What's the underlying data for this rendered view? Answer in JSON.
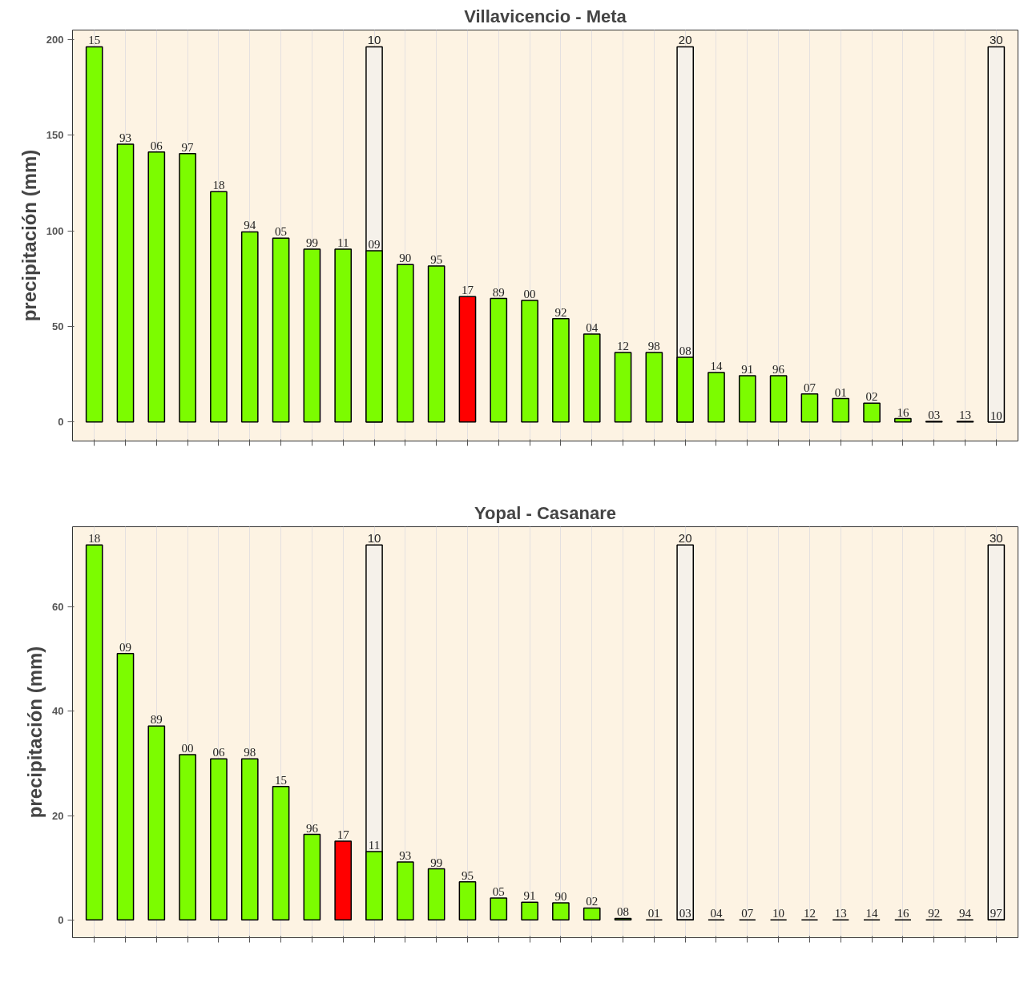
{
  "chart_data": [
    {
      "type": "bar",
      "title": "Villavicencio - Meta",
      "ylabel": "precipitación (mm)",
      "categories": [
        "15",
        "93",
        "06",
        "97",
        "18",
        "94",
        "05",
        "99",
        "11",
        "09",
        "90",
        "95",
        "17",
        "89",
        "00",
        "92",
        "04",
        "12",
        "98",
        "08",
        "14",
        "91",
        "96",
        "07",
        "01",
        "02",
        "16",
        "03",
        "13",
        "10"
      ],
      "ylim": [
        -10,
        205
      ],
      "yticks": [
        0,
        50,
        100,
        150,
        200
      ],
      "grid": "x",
      "tick_labels": "y",
      "annotations": [
        {
          "text": "10",
          "x": "09",
          "y": 196.2
        },
        {
          "text": "20",
          "x": "08",
          "y": 196.2
        },
        {
          "text": "30",
          "x": "10",
          "y": 196.2
        }
      ],
      "series": [
        {
          "color": "#f5f1ea",
          "values": [
            null,
            null,
            null,
            null,
            null,
            null,
            null,
            null,
            null,
            196.2,
            null,
            null,
            null,
            null,
            null,
            null,
            null,
            null,
            null,
            196.2,
            null,
            null,
            null,
            null,
            null,
            null,
            null,
            null,
            null,
            196.2
          ]
        },
        {
          "colors": [
            "#7cfc00",
            "#7cfc00",
            "#7cfc00",
            "#7cfc00",
            "#7cfc00",
            "#7cfc00",
            "#7cfc00",
            "#7cfc00",
            "#7cfc00",
            "#7cfc00",
            "#7cfc00",
            "#7cfc00",
            "#ff0000",
            "#7cfc00",
            "#7cfc00",
            "#7cfc00",
            "#7cfc00",
            "#7cfc00",
            "#7cfc00",
            "#7cfc00",
            "#7cfc00",
            "#7cfc00",
            "#7cfc00",
            "#7cfc00",
            "#7cfc00",
            "#7cfc00",
            "#7cfc00",
            "#7cfc00",
            "#7cfc00",
            "#000000"
          ],
          "values": [
            196.2,
            145.3,
            141.2,
            140.4,
            120.4,
            99.4,
            96.1,
            90.4,
            90.4,
            89.5,
            82.3,
            81.6,
            65.5,
            64.6,
            63.6,
            54.0,
            46.0,
            36.3,
            36.3,
            33.8,
            25.8,
            24.2,
            24.2,
            14.6,
            12.2,
            9.8,
            1.7,
            0.3,
            0.3,
            0
          ]
        }
      ]
    },
    {
      "type": "bar",
      "title": "Yopal - Casanare",
      "ylabel": "precipitación (mm)",
      "categories": [
        "18",
        "09",
        "89",
        "00",
        "06",
        "98",
        "15",
        "96",
        "17",
        "11",
        "93",
        "99",
        "95",
        "05",
        "91",
        "90",
        "02",
        "08",
        "01",
        "03",
        "04",
        "07",
        "10",
        "12",
        "13",
        "14",
        "16",
        "92",
        "94",
        "97"
      ],
      "ylim": [
        -3.4,
        75.4
      ],
      "yticks": [
        0,
        20,
        40,
        60
      ],
      "grid": "x",
      "tick_labels": "y",
      "annotations": [
        {
          "text": "10",
          "x": "11",
          "y": 71.9
        },
        {
          "text": "20",
          "x": "03",
          "y": 71.9
        },
        {
          "text": "30",
          "x": "97",
          "y": 71.9
        }
      ],
      "series": [
        {
          "color": "#f5f1ea",
          "values": [
            null,
            null,
            null,
            null,
            null,
            null,
            null,
            null,
            null,
            71.9,
            null,
            null,
            null,
            null,
            null,
            null,
            null,
            null,
            null,
            71.9,
            null,
            null,
            null,
            null,
            null,
            null,
            null,
            null,
            null,
            71.9
          ]
        },
        {
          "colors": [
            "#7cfc00",
            "#7cfc00",
            "#7cfc00",
            "#7cfc00",
            "#7cfc00",
            "#7cfc00",
            "#7cfc00",
            "#7cfc00",
            "#ff0000",
            "#7cfc00",
            "#7cfc00",
            "#7cfc00",
            "#7cfc00",
            "#7cfc00",
            "#7cfc00",
            "#7cfc00",
            "#7cfc00",
            "#7cfc00",
            "#000000",
            "#000000",
            "#000000",
            "#000000",
            "#000000",
            "#000000",
            "#000000",
            "#000000",
            "#000000",
            "#000000",
            "#000000",
            "#000000"
          ],
          "values": [
            71.9,
            51.1,
            37.2,
            31.7,
            30.9,
            30.9,
            25.6,
            16.4,
            15.1,
            13.1,
            11.1,
            9.8,
            7.3,
            4.2,
            3.4,
            3.3,
            2.3,
            0.3,
            0,
            0,
            0,
            0,
            0,
            0,
            0,
            0,
            0,
            0,
            0,
            0
          ]
        }
      ]
    }
  ]
}
